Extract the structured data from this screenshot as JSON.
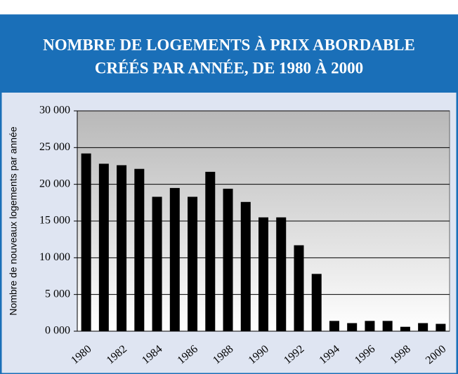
{
  "chart_data": {
    "type": "bar",
    "title": "NOMBRE DE LOGEMENTS À PRIX ABORDABLE",
    "subtitle": "CRÉÉS PAR ANNÉE, DE 1980 À 2000",
    "y_label": "Nombre de nouveaux logements par année",
    "categories": [
      "1980",
      null,
      "1982",
      null,
      "1984",
      null,
      "1986",
      null,
      "1988",
      null,
      "1990",
      null,
      "1992",
      null,
      "1994",
      null,
      "1996",
      null,
      "1998",
      null,
      "2000"
    ],
    "values": [
      24200,
      22800,
      22600,
      22100,
      18300,
      19500,
      18300,
      21700,
      19400,
      17600,
      15500,
      15500,
      11700,
      7800,
      1400,
      1100,
      1400,
      1400,
      600,
      1100,
      1000
    ],
    "color": "#000000",
    "ylim": [
      0,
      30000
    ],
    "yticks": [
      {
        "value": 0,
        "label": "0 000"
      },
      {
        "value": 5000,
        "label": "5 000"
      },
      {
        "value": 10000,
        "label": "10 000"
      },
      {
        "value": 15000,
        "label": "15 000"
      },
      {
        "value": 20000,
        "label": "20 000"
      },
      {
        "value": 25000,
        "label": "25 000"
      },
      {
        "value": 30000,
        "label": "30 000"
      }
    ],
    "grid": true
  }
}
